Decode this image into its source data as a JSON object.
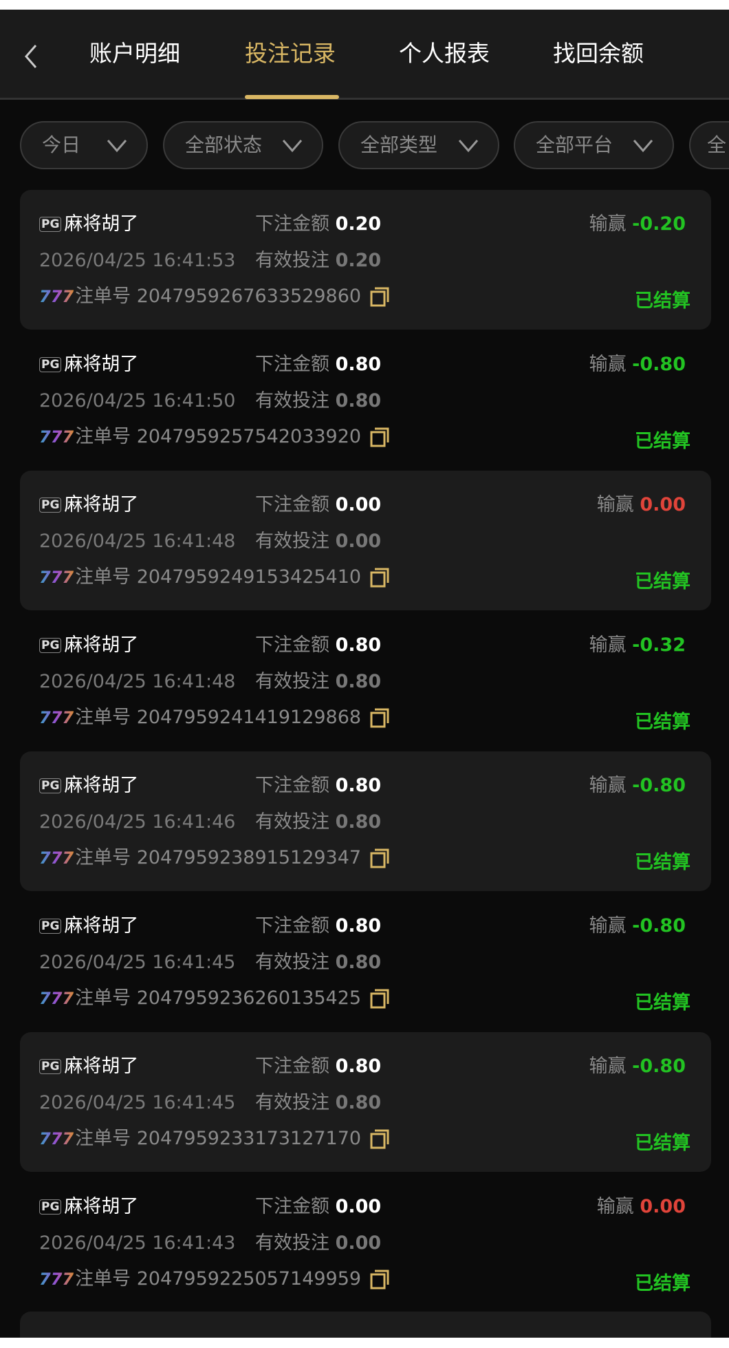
{
  "header": {
    "tabs": [
      {
        "label": "账户明细"
      },
      {
        "label": "投注记录",
        "active": true
      },
      {
        "label": "个人报表"
      },
      {
        "label": "找回余额"
      }
    ]
  },
  "filters": [
    {
      "label": "今日"
    },
    {
      "label": "全部状态"
    },
    {
      "label": "全部类型"
    },
    {
      "label": "全部平台"
    },
    {
      "label": "全"
    }
  ],
  "labels": {
    "bet_amount": "下注金额",
    "valid_bet": "有效投注",
    "win_loss": "输赢",
    "order_no": "注单号",
    "provider_badge": "PG",
    "game_badge": "777"
  },
  "colors": {
    "accent": "#d9b764",
    "win_loss_negative": "#22c322",
    "win_loss_zero": "#e0443a",
    "settled": "#22c322"
  },
  "records": [
    {
      "game": "麻将胡了",
      "time": "2026/04/25 16:41:53",
      "bet": "0.20",
      "valid": "0.20",
      "win_loss": "-0.20",
      "order": "2047959267633529860",
      "status": "已结算"
    },
    {
      "game": "麻将胡了",
      "time": "2026/04/25 16:41:50",
      "bet": "0.80",
      "valid": "0.80",
      "win_loss": "-0.80",
      "order": "2047959257542033920",
      "status": "已结算"
    },
    {
      "game": "麻将胡了",
      "time": "2026/04/25 16:41:48",
      "bet": "0.00",
      "valid": "0.00",
      "win_loss": "0.00",
      "order": "2047959249153425410",
      "status": "已结算"
    },
    {
      "game": "麻将胡了",
      "time": "2026/04/25 16:41:48",
      "bet": "0.80",
      "valid": "0.80",
      "win_loss": "-0.32",
      "order": "2047959241419129868",
      "status": "已结算"
    },
    {
      "game": "麻将胡了",
      "time": "2026/04/25 16:41:46",
      "bet": "0.80",
      "valid": "0.80",
      "win_loss": "-0.80",
      "order": "2047959238915129347",
      "status": "已结算"
    },
    {
      "game": "麻将胡了",
      "time": "2026/04/25 16:41:45",
      "bet": "0.80",
      "valid": "0.80",
      "win_loss": "-0.80",
      "order": "2047959236260135425",
      "status": "已结算"
    },
    {
      "game": "麻将胡了",
      "time": "2026/04/25 16:41:45",
      "bet": "0.80",
      "valid": "0.80",
      "win_loss": "-0.80",
      "order": "2047959233173127170",
      "status": "已结算"
    },
    {
      "game": "麻将胡了",
      "time": "2026/04/25 16:41:43",
      "bet": "0.00",
      "valid": "0.00",
      "win_loss": "0.00",
      "order": "2047959225057149959",
      "status": "已结算"
    }
  ]
}
